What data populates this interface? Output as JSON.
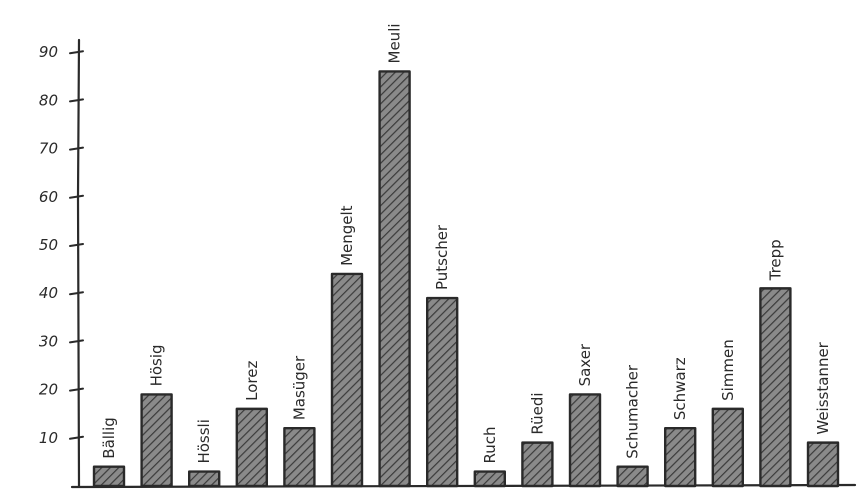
{
  "chart_data": {
    "type": "bar",
    "title": "",
    "xlabel": "",
    "ylabel": "",
    "ylim": [
      0,
      100
    ],
    "grid": false,
    "legend": "none",
    "y_ticks": [
      10,
      20,
      30,
      40,
      50,
      60,
      70,
      80,
      90
    ],
    "y_tick_labels": [
      "10",
      "20",
      "30",
      "40",
      "50",
      "60",
      "70",
      "80",
      "90"
    ],
    "categories": [
      "Bällig",
      "Hösig",
      "Hössli",
      "Lorez",
      "Masüger",
      "Mengelt",
      "Meuli",
      "Putscher",
      "Ruch",
      "Rüedi",
      "Saxer",
      "Schumacher",
      "Schwarz",
      "Simmen",
      "Trepp",
      "Weisstanner"
    ],
    "values": [
      4,
      19,
      3,
      16,
      12,
      44,
      86,
      39,
      3,
      9,
      19,
      4,
      12,
      16,
      41,
      9
    ],
    "colors": {
      "ink": "#2a2a2a",
      "bar_fill": "#8a8a8a",
      "hatch": "#3a3a3a",
      "background": "#ffffff"
    }
  }
}
